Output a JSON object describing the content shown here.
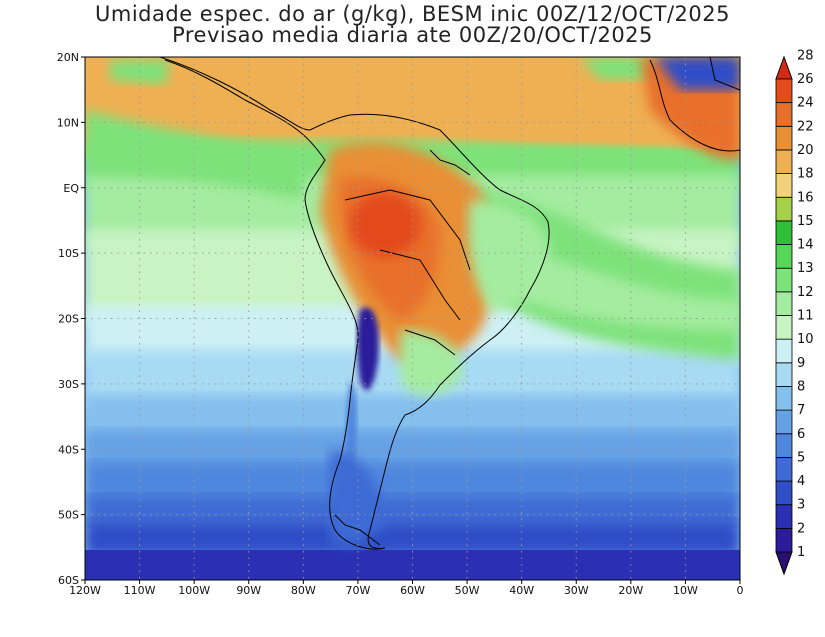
{
  "title_line1": "Umidade espec. do ar (g/kg), BESM inic 00Z/12/OCT/2025",
  "title_line2": "Previsao media diaria ate 00Z/20/OCT/2025",
  "axes": {
    "lon_labels": [
      "120W",
      "110W",
      "100W",
      "90W",
      "80W",
      "70W",
      "60W",
      "50W",
      "40W",
      "30W",
      "20W",
      "10W",
      "0"
    ],
    "lat_labels": [
      "20N",
      "10N",
      "EQ",
      "10S",
      "20S",
      "30S",
      "40S",
      "50S",
      "60S"
    ]
  },
  "colorbar": {
    "levels": [
      "1",
      "2",
      "3",
      "4",
      "5",
      "6",
      "7",
      "8",
      "9",
      "10",
      "11",
      "12",
      "13",
      "14",
      "15",
      "16",
      "18",
      "20",
      "22",
      "24",
      "26",
      "28"
    ],
    "colors": [
      "#2a0f6e",
      "#2c1a9a",
      "#2a2fb3",
      "#2f4ec7",
      "#3d6ad4",
      "#4f86de",
      "#66a1e6",
      "#84bfee",
      "#a8daf4",
      "#cdf0f4",
      "#c8f4c4",
      "#a4eca0",
      "#7ee27a",
      "#55d657",
      "#2fc03a",
      "#a6cf4a",
      "#f1d27a",
      "#eeb053",
      "#e98f34",
      "#e8702a",
      "#e34a1e",
      "#d62a12"
    ]
  },
  "map_colors": {
    "ocean_dry": "#3b5fc8",
    "ocean_moist": "#66c971",
    "land_hot": "#e8732a",
    "coast": "#000000"
  }
}
